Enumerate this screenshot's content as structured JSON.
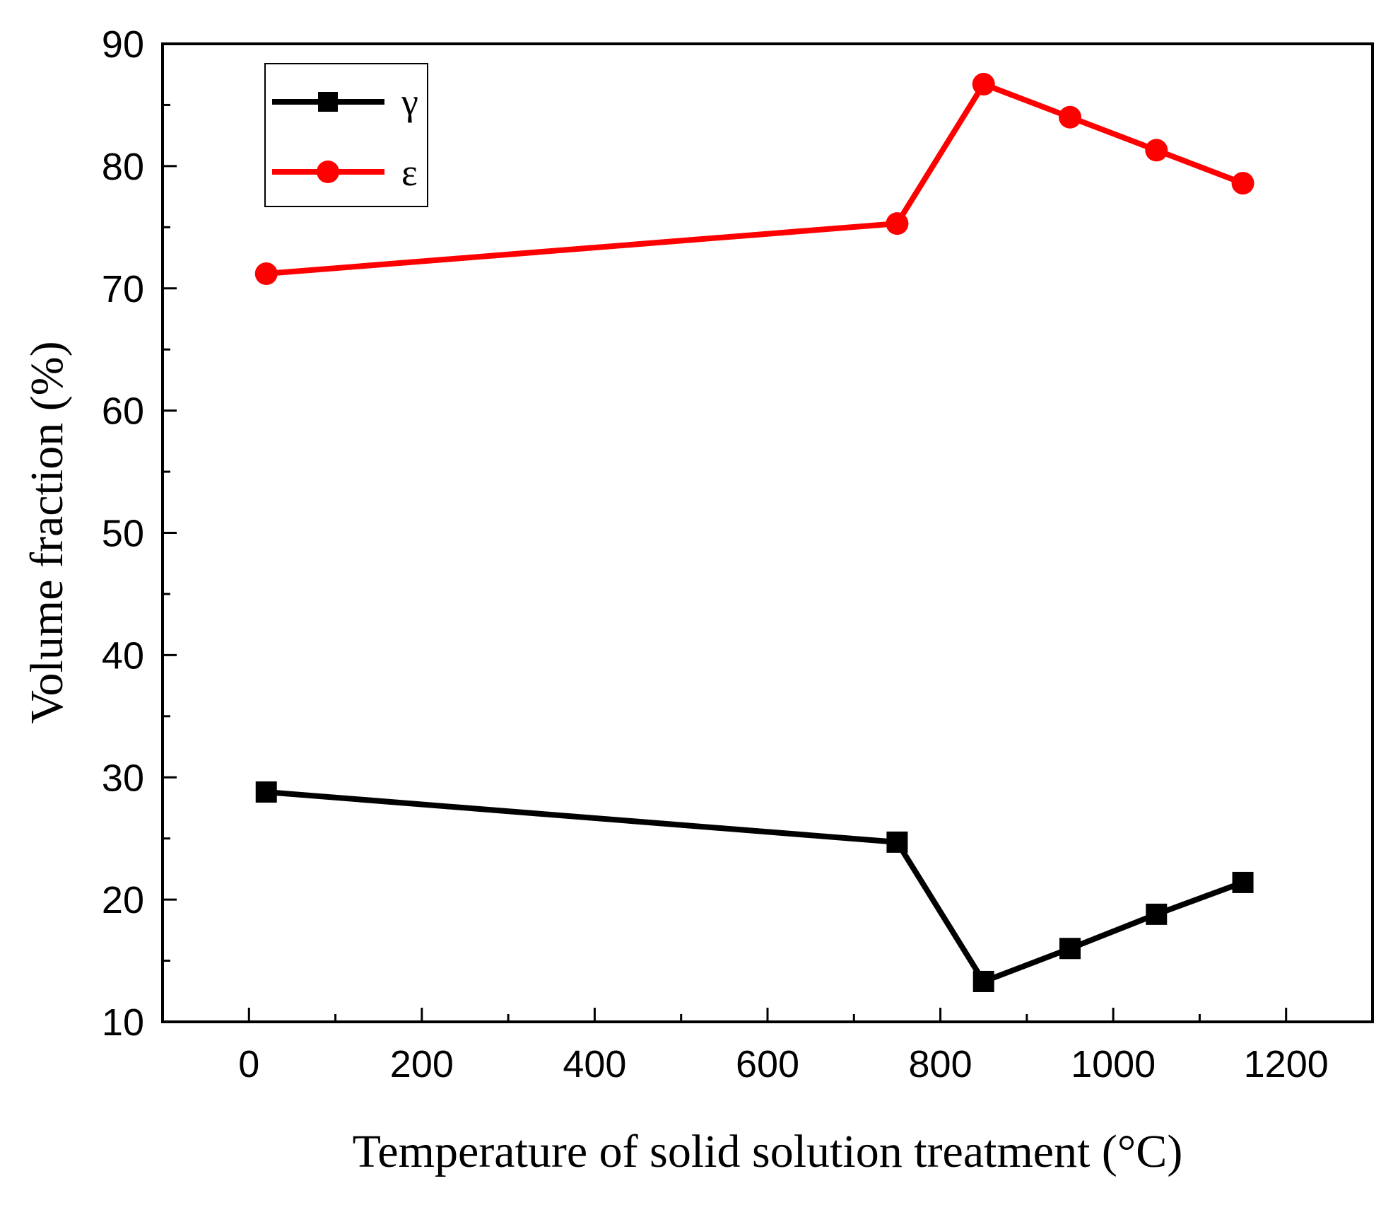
{
  "chart_data": {
    "type": "line",
    "title": "",
    "xlabel": "Temperature of solid solution treatment (°C)",
    "ylabel": "Volume fraction (%)",
    "xlim": [
      -100,
      1300
    ],
    "ylim": [
      10,
      90
    ],
    "xticks": [
      0,
      200,
      400,
      600,
      800,
      1000,
      1200
    ],
    "xtick_labels": [
      "0",
      "200",
      "400",
      "600",
      "800",
      "1000",
      "1200"
    ],
    "yticks": [
      10,
      20,
      30,
      40,
      50,
      60,
      70,
      80,
      90
    ],
    "ytick_labels": [
      "10",
      "20",
      "30",
      "40",
      "50",
      "60",
      "70",
      "80",
      "90"
    ],
    "grid": false,
    "legend_position": "top-left",
    "series": [
      {
        "name": "γ",
        "color": "#000000",
        "marker": "square",
        "x": [
          20,
          750,
          850,
          950,
          1050,
          1150
        ],
        "y": [
          28.8,
          24.7,
          13.3,
          16.0,
          18.8,
          21.4
        ]
      },
      {
        "name": "ε",
        "color": "#ff0000",
        "marker": "circle",
        "x": [
          20,
          750,
          850,
          950,
          1050,
          1150
        ],
        "y": [
          71.2,
          75.3,
          86.7,
          84.0,
          81.3,
          78.6
        ]
      }
    ]
  }
}
